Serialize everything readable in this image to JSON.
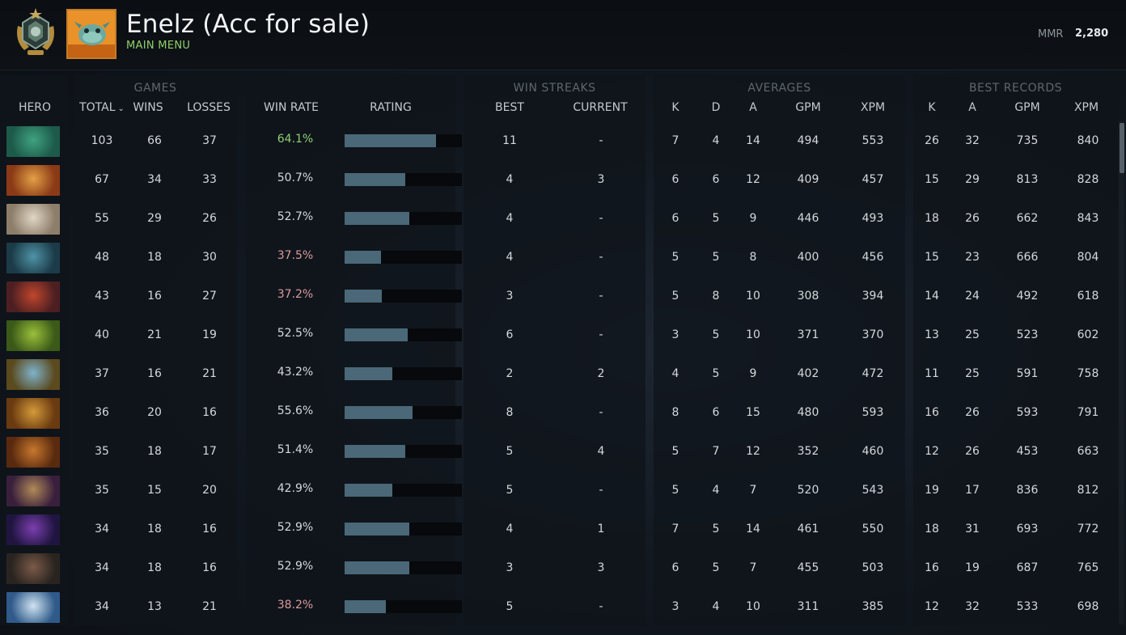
{
  "header": {
    "player_name": "Enelz (Acc for sale)",
    "menu_link": "MAIN MENU",
    "mmr_label": "MMR",
    "mmr_value": "2,280"
  },
  "groups": {
    "games": "GAMES",
    "win_streaks": "WIN STREAKS",
    "averages": "AVERAGES",
    "best_records": "BEST RECORDS"
  },
  "columns": {
    "hero": "HERO",
    "total": "TOTAL",
    "wins": "WINS",
    "losses": "LOSSES",
    "win_rate": "WIN RATE",
    "rating": "RATING",
    "best": "BEST",
    "current": "CURRENT",
    "avg_k": "K",
    "avg_d": "D",
    "avg_a": "A",
    "avg_gpm": "GPM",
    "avg_xpm": "XPM",
    "best_k": "K",
    "best_a": "A",
    "best_gpm": "GPM",
    "best_xpm": "XPM"
  },
  "colors": {
    "win_good": "#8ecf73",
    "win_bad": "#d99a9a",
    "rating_bar": "#4a6878",
    "menu_link": "#8fd16a"
  },
  "rows": [
    {
      "hero_icon": "hero-portrait-icon-1",
      "total": "103",
      "wins": "66",
      "losses": "37",
      "win_rate": "64.1%",
      "win_state": "good",
      "rating": 0.78,
      "best": "11",
      "current": "-",
      "k": "7",
      "d": "4",
      "a": "14",
      "gpm": "494",
      "xpm": "553",
      "best_k": "26",
      "best_a": "32",
      "best_gpm": "735",
      "best_xpm": "840"
    },
    {
      "hero_icon": "hero-portrait-icon-2",
      "total": "67",
      "wins": "34",
      "losses": "33",
      "win_rate": "50.7%",
      "win_state": "normal",
      "rating": 0.52,
      "best": "4",
      "current": "3",
      "k": "6",
      "d": "6",
      "a": "12",
      "gpm": "409",
      "xpm": "457",
      "best_k": "15",
      "best_a": "29",
      "best_gpm": "813",
      "best_xpm": "828"
    },
    {
      "hero_icon": "hero-portrait-icon-3",
      "total": "55",
      "wins": "29",
      "losses": "26",
      "win_rate": "52.7%",
      "win_state": "normal",
      "rating": 0.55,
      "best": "4",
      "current": "-",
      "k": "6",
      "d": "5",
      "a": "9",
      "gpm": "446",
      "xpm": "493",
      "best_k": "18",
      "best_a": "26",
      "best_gpm": "662",
      "best_xpm": "843"
    },
    {
      "hero_icon": "hero-portrait-icon-4",
      "total": "48",
      "wins": "18",
      "losses": "30",
      "win_rate": "37.5%",
      "win_state": "bad",
      "rating": 0.31,
      "best": "4",
      "current": "-",
      "k": "5",
      "d": "5",
      "a": "8",
      "gpm": "400",
      "xpm": "456",
      "best_k": "15",
      "best_a": "23",
      "best_gpm": "666",
      "best_xpm": "804"
    },
    {
      "hero_icon": "hero-portrait-icon-5",
      "total": "43",
      "wins": "16",
      "losses": "27",
      "win_rate": "37.2%",
      "win_state": "bad",
      "rating": 0.32,
      "best": "3",
      "current": "-",
      "k": "5",
      "d": "8",
      "a": "10",
      "gpm": "308",
      "xpm": "394",
      "best_k": "14",
      "best_a": "24",
      "best_gpm": "492",
      "best_xpm": "618"
    },
    {
      "hero_icon": "hero-portrait-icon-6",
      "total": "40",
      "wins": "21",
      "losses": "19",
      "win_rate": "52.5%",
      "win_state": "normal",
      "rating": 0.54,
      "best": "6",
      "current": "-",
      "k": "3",
      "d": "5",
      "a": "10",
      "gpm": "371",
      "xpm": "370",
      "best_k": "13",
      "best_a": "25",
      "best_gpm": "523",
      "best_xpm": "602"
    },
    {
      "hero_icon": "hero-portrait-icon-7",
      "total": "37",
      "wins": "16",
      "losses": "21",
      "win_rate": "43.2%",
      "win_state": "normal",
      "rating": 0.41,
      "best": "2",
      "current": "2",
      "k": "4",
      "d": "5",
      "a": "9",
      "gpm": "402",
      "xpm": "472",
      "best_k": "11",
      "best_a": "25",
      "best_gpm": "591",
      "best_xpm": "758"
    },
    {
      "hero_icon": "hero-portrait-icon-8",
      "total": "36",
      "wins": "20",
      "losses": "16",
      "win_rate": "55.6%",
      "win_state": "normal",
      "rating": 0.58,
      "best": "8",
      "current": "-",
      "k": "8",
      "d": "6",
      "a": "15",
      "gpm": "480",
      "xpm": "593",
      "best_k": "16",
      "best_a": "26",
      "best_gpm": "593",
      "best_xpm": "791"
    },
    {
      "hero_icon": "hero-portrait-icon-9",
      "total": "35",
      "wins": "18",
      "losses": "17",
      "win_rate": "51.4%",
      "win_state": "normal",
      "rating": 0.52,
      "best": "5",
      "current": "4",
      "k": "5",
      "d": "7",
      "a": "12",
      "gpm": "352",
      "xpm": "460",
      "best_k": "12",
      "best_a": "26",
      "best_gpm": "453",
      "best_xpm": "663"
    },
    {
      "hero_icon": "hero-portrait-icon-10",
      "total": "35",
      "wins": "15",
      "losses": "20",
      "win_rate": "42.9%",
      "win_state": "normal",
      "rating": 0.41,
      "best": "5",
      "current": "-",
      "k": "5",
      "d": "4",
      "a": "7",
      "gpm": "520",
      "xpm": "543",
      "best_k": "19",
      "best_a": "17",
      "best_gpm": "836",
      "best_xpm": "812"
    },
    {
      "hero_icon": "hero-portrait-icon-11",
      "total": "34",
      "wins": "18",
      "losses": "16",
      "win_rate": "52.9%",
      "win_state": "normal",
      "rating": 0.55,
      "best": "4",
      "current": "1",
      "k": "7",
      "d": "5",
      "a": "14",
      "gpm": "461",
      "xpm": "550",
      "best_k": "18",
      "best_a": "31",
      "best_gpm": "693",
      "best_xpm": "772"
    },
    {
      "hero_icon": "hero-portrait-icon-12",
      "total": "34",
      "wins": "18",
      "losses": "16",
      "win_rate": "52.9%",
      "win_state": "normal",
      "rating": 0.55,
      "best": "3",
      "current": "3",
      "k": "6",
      "d": "5",
      "a": "7",
      "gpm": "455",
      "xpm": "503",
      "best_k": "16",
      "best_a": "19",
      "best_gpm": "687",
      "best_xpm": "765"
    },
    {
      "hero_icon": "hero-portrait-icon-13",
      "total": "34",
      "wins": "13",
      "losses": "21",
      "win_rate": "38.2%",
      "win_state": "bad",
      "rating": 0.35,
      "best": "5",
      "current": "-",
      "k": "3",
      "d": "4",
      "a": "10",
      "gpm": "311",
      "xpm": "385",
      "best_k": "12",
      "best_a": "32",
      "best_gpm": "533",
      "best_xpm": "698"
    }
  ]
}
